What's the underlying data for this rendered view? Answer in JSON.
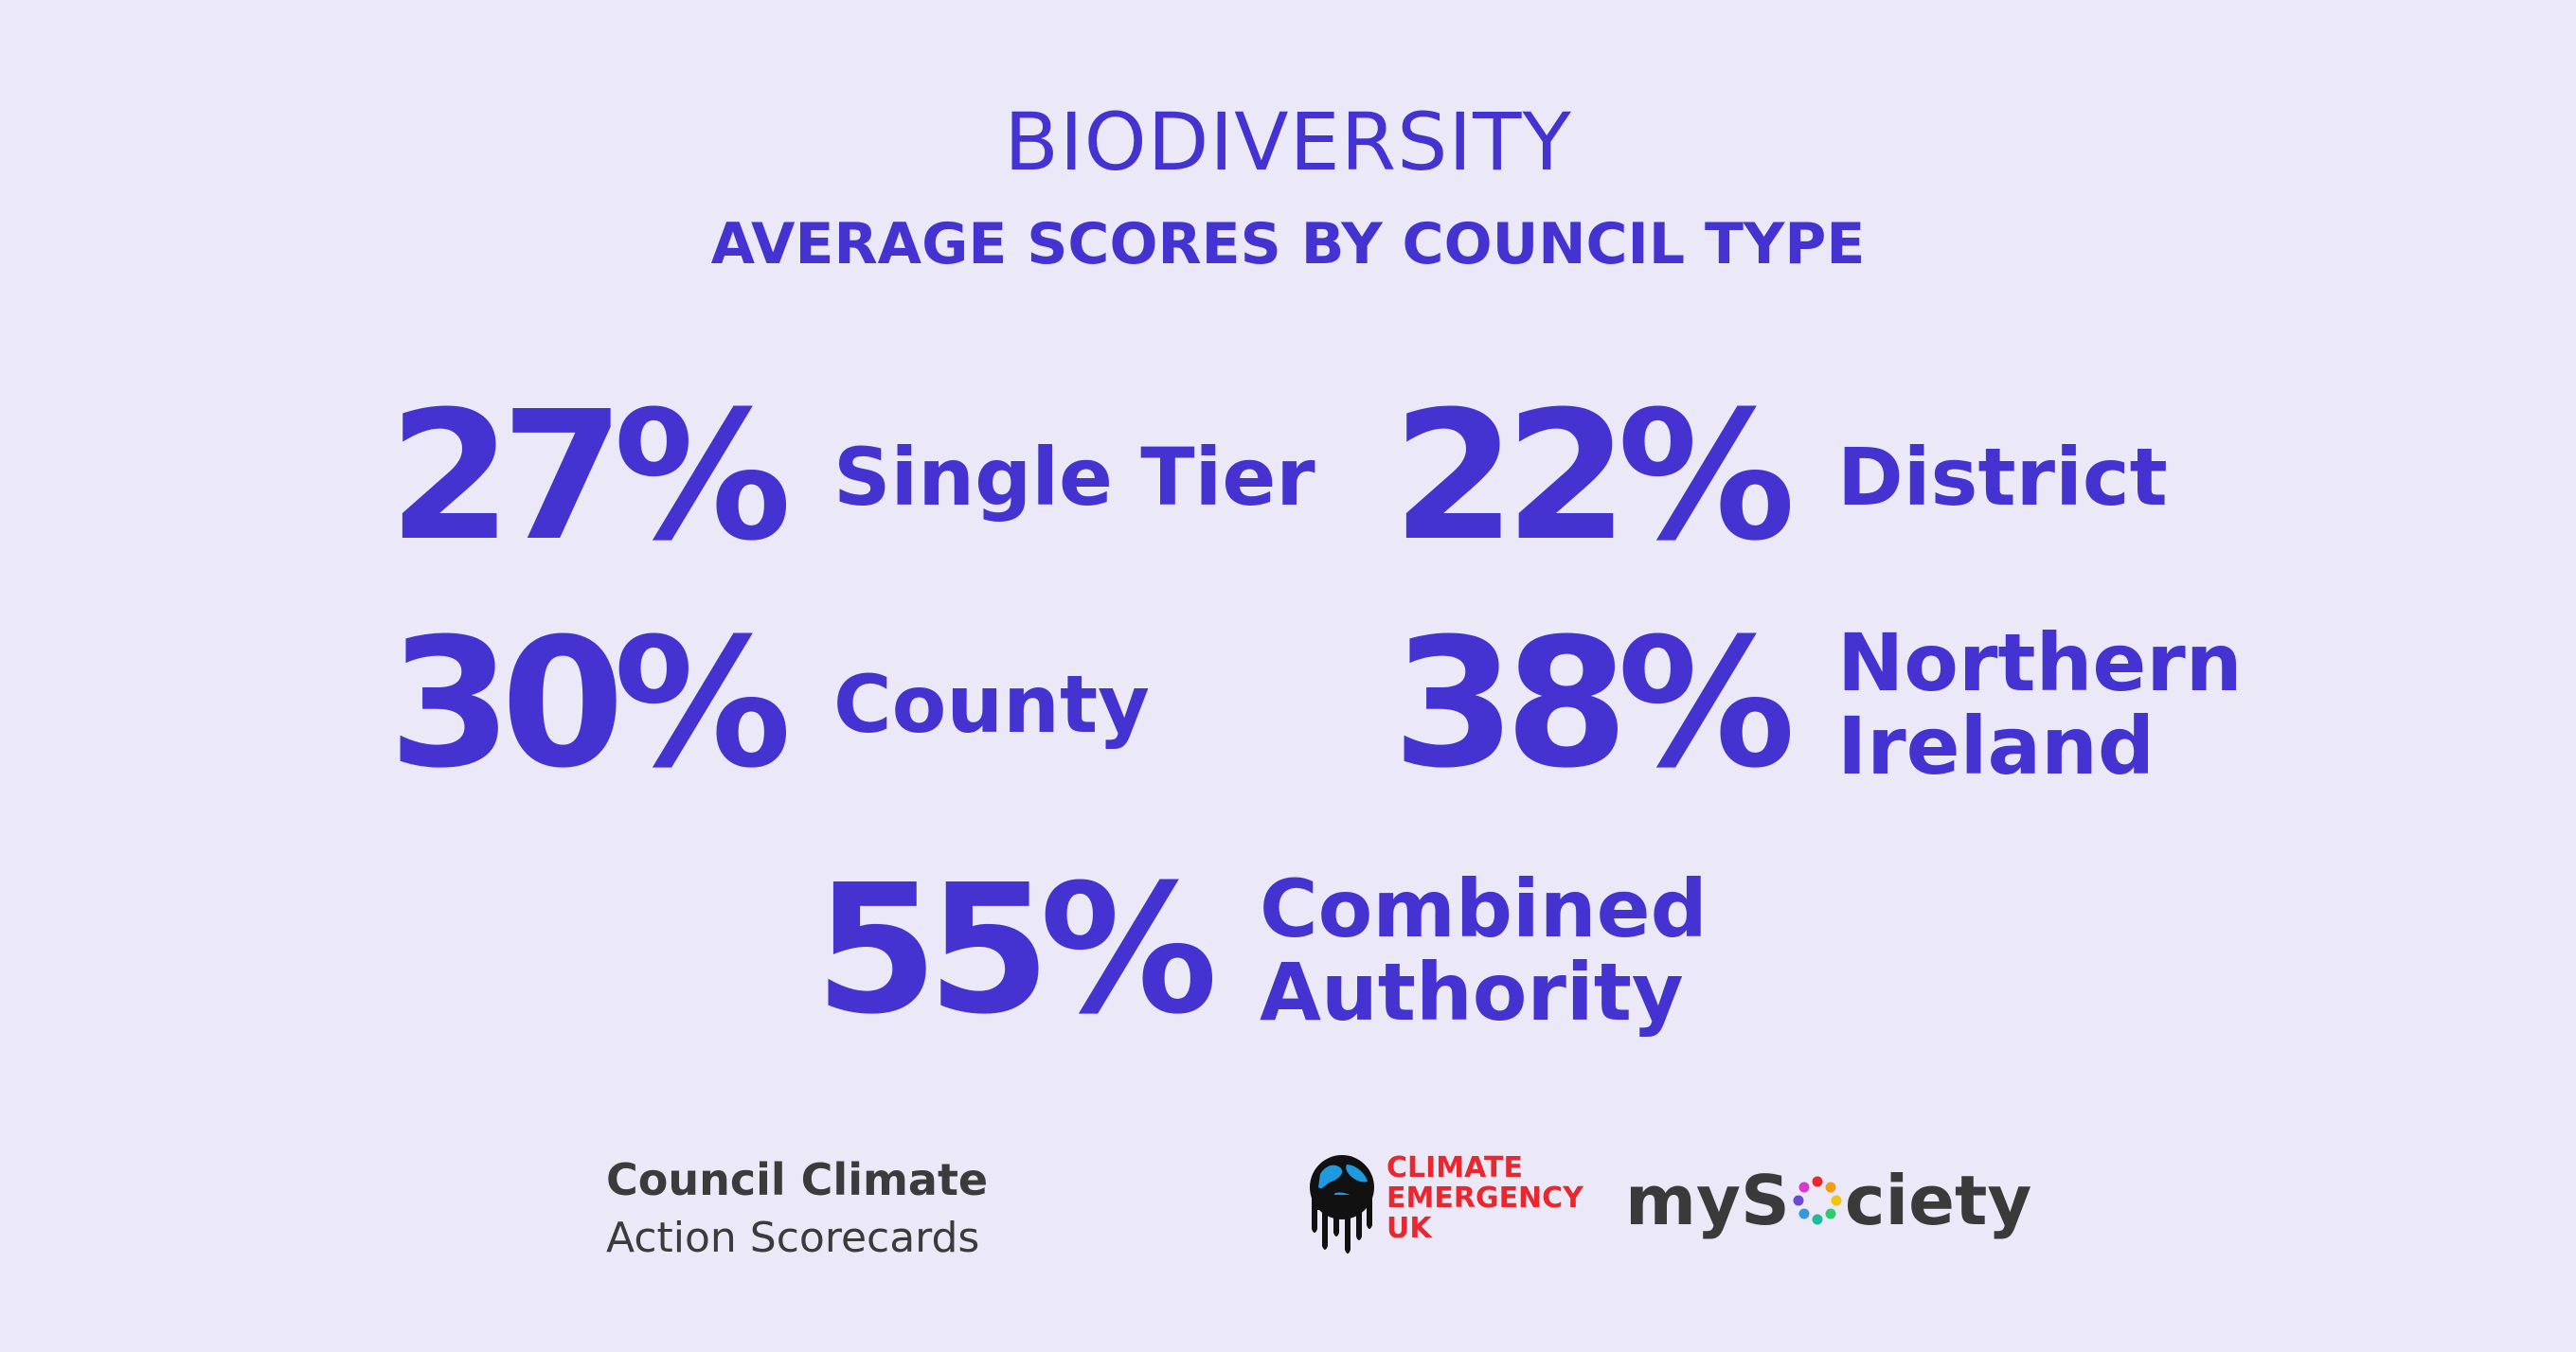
{
  "header": {
    "title": "BIODIVERSITY",
    "subtitle": "AVERAGE SCORES BY COUNCIL TYPE"
  },
  "scores": {
    "single_tier": {
      "value": "27%",
      "label": "Single Tier"
    },
    "district": {
      "value": "22%",
      "label": "District"
    },
    "county": {
      "value": "30%",
      "label": "County"
    },
    "northern_ireland": {
      "value": "38%",
      "label": "Northern\nIreland"
    },
    "combined_authority": {
      "value": "55%",
      "label": "Combined\nAuthority"
    }
  },
  "footer": {
    "brand_line1": "Council Climate",
    "brand_line2": "Action Scorecards",
    "ceuk_line1": "CLIMATE",
    "ceuk_line2": "EMERGENCY",
    "ceuk_line3": "UK",
    "mysociety_before": "myS",
    "mysociety_after": "ciety"
  },
  "colors": {
    "background": "#ebe8f8",
    "accent": "#4433d1",
    "ceuk_red": "#e8282e",
    "footer_text": "#3b3b3b"
  }
}
